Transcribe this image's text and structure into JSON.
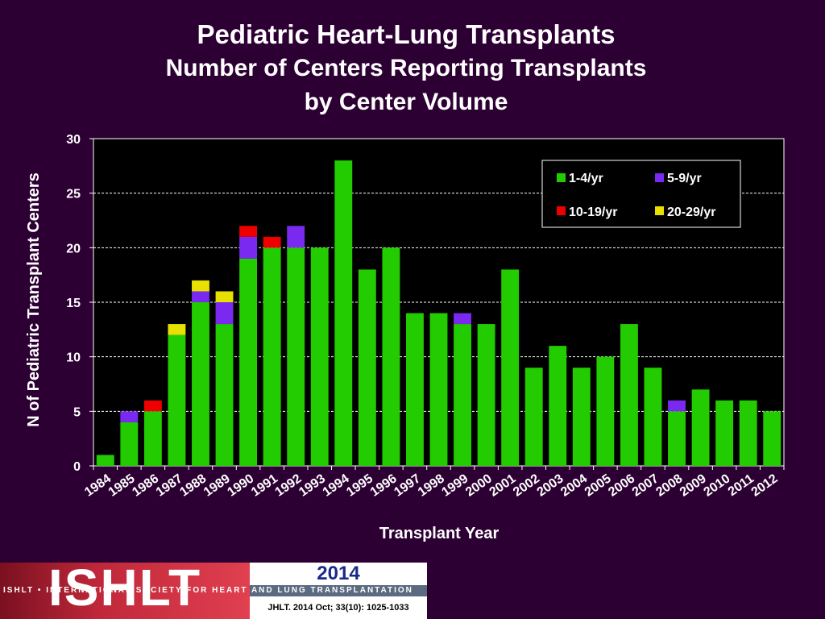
{
  "chart_data": {
    "type": "bar",
    "stacked": true,
    "title": "Pediatric Heart-Lung Transplants",
    "subtitle_line1": "Number of Centers Reporting Transplants",
    "subtitle_line2": "by Center Volume",
    "xlabel": "Transplant Year",
    "ylabel": "N of Pediatric Transplant Centers",
    "ylim": [
      0,
      30
    ],
    "yticks": [
      0,
      5,
      10,
      15,
      20,
      25,
      30
    ],
    "grid": true,
    "legend_position": "top-right",
    "categories": [
      "1984",
      "1985",
      "1986",
      "1987",
      "1988",
      "1989",
      "1990",
      "1991",
      "1992",
      "1993",
      "1994",
      "1995",
      "1996",
      "1997",
      "1998",
      "1999",
      "2000",
      "2001",
      "2002",
      "2003",
      "2004",
      "2005",
      "2006",
      "2007",
      "2008",
      "2009",
      "2010",
      "2011",
      "2012"
    ],
    "series": [
      {
        "name": "1-4/yr",
        "color": "#22cc00",
        "values": [
          1,
          4,
          5,
          12,
          15,
          13,
          19,
          20,
          20,
          20,
          28,
          18,
          20,
          14,
          14,
          13,
          13,
          18,
          9,
          11,
          9,
          10,
          13,
          9,
          5,
          7,
          6,
          6,
          5
        ]
      },
      {
        "name": "5-9/yr",
        "color": "#7a2af0",
        "values": [
          0,
          1,
          0,
          0,
          1,
          2,
          2,
          0,
          2,
          0,
          0,
          0,
          0,
          0,
          0,
          1,
          0,
          0,
          0,
          0,
          0,
          0,
          0,
          0,
          1,
          0,
          0,
          0,
          0
        ]
      },
      {
        "name": "10-19/yr",
        "color": "#ee0000",
        "values": [
          0,
          0,
          1,
          0,
          0,
          0,
          1,
          1,
          0,
          0,
          0,
          0,
          0,
          0,
          0,
          0,
          0,
          0,
          0,
          0,
          0,
          0,
          0,
          0,
          0,
          0,
          0,
          0,
          0
        ]
      },
      {
        "name": "20-29/yr",
        "color": "#e8e000",
        "values": [
          0,
          0,
          0,
          1,
          1,
          1,
          0,
          0,
          0,
          0,
          0,
          0,
          0,
          0,
          0,
          0,
          0,
          0,
          0,
          0,
          0,
          0,
          0,
          0,
          0,
          0,
          0,
          0,
          0
        ]
      }
    ]
  },
  "footer": {
    "logo_text": "ISHLT",
    "tagline": "ISHLT • INTERNATIONAL SOCIETY FOR HEART AND LUNG TRANSPLANTATION",
    "year": "2014",
    "citation": "JHLT. 2014 Oct; 33(10): 1025-1033"
  }
}
